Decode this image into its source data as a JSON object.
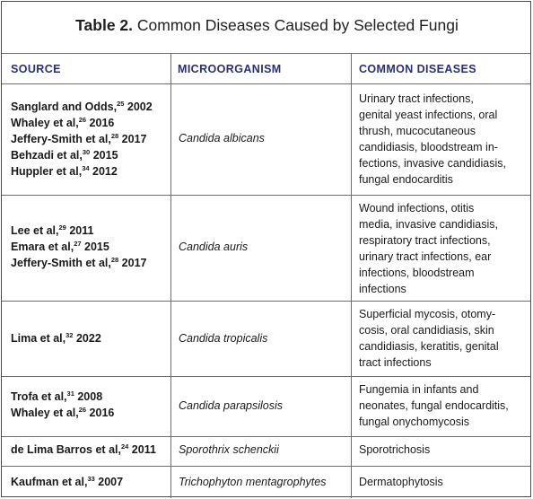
{
  "table": {
    "title_bold": "Table 2.",
    "title_rest": " Common Diseases Caused by Selected Fungi",
    "headers": [
      "SOURCE",
      "MICROORGANISM",
      "COMMON DISEASES"
    ],
    "rows": [
      {
        "sources": [
          {
            "name": "Sanglard and Odds,",
            "ref": "25",
            "year": " 2002"
          },
          {
            "name": "Whaley et al,",
            "ref": "26",
            "year": " 2016"
          },
          {
            "name": "Jeffery-Smith et al,",
            "ref": "28",
            "year": " 2017"
          },
          {
            "name": "Behzadi et al,",
            "ref": "30",
            "year": " 2015"
          },
          {
            "name": "Huppler et al,",
            "ref": "34",
            "year": " 2012"
          }
        ],
        "organism": "Candida albicans",
        "diseases": [
          "Urinary tract infections,",
          "genital yeast infections, oral",
          "thrush, mucocutaneous",
          "candidiasis, bloodstream in-",
          "fections, invasive candidiasis,",
          "fungal endocarditis"
        ]
      },
      {
        "sources": [
          {
            "name": "Lee et al,",
            "ref": "29",
            "year": " 2011"
          },
          {
            "name": "Emara et al,",
            "ref": "27",
            "year": " 2015"
          },
          {
            "name": "Jeffery-Smith et al,",
            "ref": "28",
            "year": " 2017"
          }
        ],
        "organism": "Candida auris",
        "diseases": [
          "Wound infections, otitis",
          "media, invasive candidiasis,",
          "respiratory tract infections,",
          "urinary tract infections, ear",
          "infections, bloodstream",
          "infections"
        ]
      },
      {
        "sources": [
          {
            "name": "Lima et al,",
            "ref": "32",
            "year": " 2022"
          }
        ],
        "organism": "Candida tropicalis",
        "diseases": [
          "Superficial mycosis, otomy-",
          "cosis, oral candidiasis, skin",
          "candidiasis, keratitis, genital",
          "tract infections"
        ]
      },
      {
        "sources": [
          {
            "name": "Trofa et al,",
            "ref": "31",
            "year": " 2008"
          },
          {
            "name": "Whaley et al,",
            "ref": "26",
            "year": " 2016"
          }
        ],
        "organism": "Candida parapsilosis",
        "diseases": [
          "Fungemia in infants and",
          "neonates, fungal endocarditis,",
          "fungal onychomycosis"
        ]
      },
      {
        "sources": [
          {
            "name": "de Lima Barros et al,",
            "ref": "24",
            "year": " 2011"
          }
        ],
        "organism": "Sporothrix schenckii",
        "diseases": [
          "Sporotrichosis"
        ]
      },
      {
        "sources": [
          {
            "name": "Kaufman et al,",
            "ref": "33",
            "year": " 2007"
          }
        ],
        "organism": "Trichophyton mentagrophytes",
        "diseases": [
          "Dermatophytosis"
        ]
      }
    ]
  }
}
